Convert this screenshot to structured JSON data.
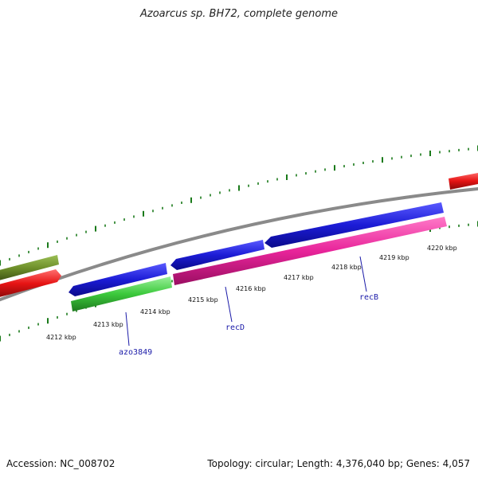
{
  "title": "Azoarcus sp. BH72, complete genome",
  "footer": {
    "accession": "Accession: NC_008702",
    "topology": "Topology: circular; Length: 4,376,040 bp; Genes: 4,057"
  },
  "colors": {
    "backbone": "#8a8a8a",
    "tick": "#1a7a1a",
    "forward_blue": "#1c1cd6",
    "reverse_pink": "#e8249a",
    "green": "#3cc93c",
    "red": "#e61414",
    "olive": "#6e8f2a",
    "label": "#1a1aa8"
  },
  "kbp_labels": [
    "4212 kbp",
    "4213 kbp",
    "4214 kbp",
    "4215 kbp",
    "4216 kbp",
    "4217 kbp",
    "4218 kbp",
    "4219 kbp",
    "4220 kbp"
  ],
  "gene_labels": [
    "azo3849",
    "recD",
    "recB"
  ]
}
